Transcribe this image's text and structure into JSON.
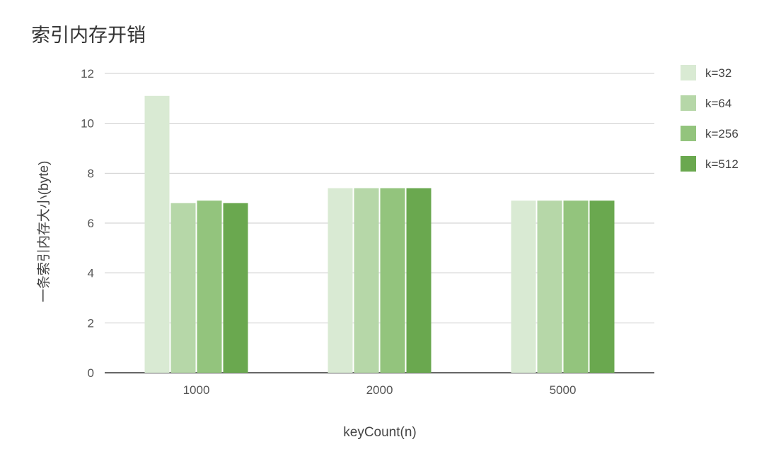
{
  "chart_data": {
    "type": "bar",
    "title": "索引内存开销",
    "xlabel": "keyCount(n)",
    "ylabel": "一条索引内存大小(byte)",
    "categories": [
      "1000",
      "2000",
      "5000"
    ],
    "ylim": [
      0,
      12
    ],
    "yticks": [
      0,
      2,
      4,
      6,
      8,
      10,
      12
    ],
    "grid": true,
    "legend_position": "right",
    "series": [
      {
        "name": "k=32",
        "color": "#d9ead3",
        "values": [
          11.1,
          7.4,
          6.9
        ]
      },
      {
        "name": "k=64",
        "color": "#b6d7a8",
        "values": [
          6.8,
          7.4,
          6.9
        ]
      },
      {
        "name": "k=256",
        "color": "#93c47d",
        "values": [
          6.9,
          7.4,
          6.9
        ]
      },
      {
        "name": "k=512",
        "color": "#6aa84f",
        "values": [
          6.8,
          7.4,
          6.9
        ]
      }
    ]
  }
}
